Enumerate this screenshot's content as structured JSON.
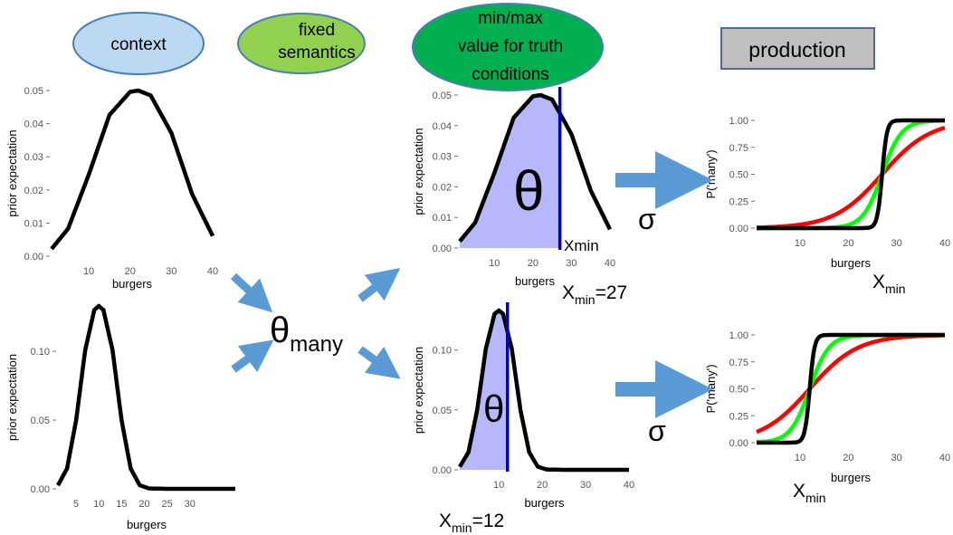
{
  "headers": {
    "context": "context",
    "fixed_semantics": [
      "fixed",
      "semantics"
    ],
    "minmax": [
      "min/max",
      "value for truth",
      "conditions"
    ],
    "production": "production"
  },
  "labels": {
    "theta_many_main": "θ",
    "theta_many_sub": "many",
    "theta_top": "θ",
    "theta_bottom": "θ",
    "sigma_top": "σ",
    "sigma_bottom": "σ",
    "xmin_plain": "Xmin",
    "xmin_top_main": "X",
    "xmin_top_sub": "min",
    "xmin_top_eq": "=27",
    "xmin_bottom_main": "X",
    "xmin_bottom_sub": "min",
    "xmin_bottom_eq": "=12",
    "xmin_right_top_main": "X",
    "xmin_right_top_sub": "min",
    "xmin_right_bottom_main": "X",
    "xmin_right_bottom_sub": "min"
  },
  "colors": {
    "context": "#bcd9f2",
    "context_border": "#4a7eb5",
    "fixed": "#92d050",
    "minmax": "#00b050",
    "production_bg": "#bfbfbf",
    "production_border": "#4a6a9a",
    "arrow": "#5b9bd5",
    "shade": "#aaaaff",
    "vline": "#0000cc",
    "curve": "#000000",
    "green": "#00ff00",
    "red": "#ff0000"
  },
  "chart_data": [
    {
      "type": "line",
      "name": "context prior (top)",
      "xlabel": "burgers",
      "ylabel": "prior expectation",
      "xlim": [
        1,
        40
      ],
      "ylim": [
        0,
        0.05
      ],
      "x_ticks": [
        10,
        20,
        30,
        40
      ],
      "y_ticks": [
        "0.00",
        "0.01",
        "0.02",
        "0.03",
        "0.04",
        "0.05"
      ],
      "series": [
        {
          "x": [
            1,
            5,
            10,
            15,
            20,
            22,
            25,
            30,
            35,
            40
          ],
          "values": [
            0.0022,
            0.0083,
            0.0246,
            0.0426,
            0.0496,
            0.05,
            0.0485,
            0.0372,
            0.0188,
            0.0061
          ]
        }
      ]
    },
    {
      "type": "line",
      "name": "context prior (bottom)",
      "xlabel": "burgers",
      "ylabel": "prior expectation",
      "xlim": [
        1,
        40
      ],
      "ylim": [
        0,
        0.133
      ],
      "x_ticks": [
        5,
        10,
        15,
        20,
        25,
        30
      ],
      "y_ticks": [
        "0.00",
        "0.05",
        "0.10"
      ],
      "series": [
        {
          "x": [
            1,
            3,
            5,
            7,
            9,
            10,
            11,
            13,
            15,
            17,
            19,
            21,
            25,
            40
          ],
          "values": [
            0.0026,
            0.0147,
            0.0498,
            0.101,
            0.1301,
            0.133,
            0.1301,
            0.101,
            0.0498,
            0.0147,
            0.0026,
            0.0003,
            0.0,
            0.0
          ]
        }
      ]
    },
    {
      "type": "area",
      "name": "threshold prior (top)",
      "xlabel": "burgers",
      "ylabel": "prior expectation",
      "xlim": [
        1,
        40
      ],
      "ylim": [
        0,
        0.05
      ],
      "x_ticks": [
        10,
        20,
        30,
        40
      ],
      "y_ticks": [
        "0.00",
        "0.01",
        "0.02",
        "0.03",
        "0.04",
        "0.05"
      ],
      "threshold": 27,
      "series": [
        {
          "x": [
            1,
            5,
            10,
            15,
            20,
            22,
            25,
            30,
            35,
            40
          ],
          "values": [
            0.0022,
            0.0083,
            0.0246,
            0.0426,
            0.0496,
            0.05,
            0.0485,
            0.0372,
            0.0188,
            0.0061
          ]
        }
      ]
    },
    {
      "type": "area",
      "name": "threshold prior (bottom)",
      "xlabel": "burgers",
      "ylabel": "prior expectation",
      "xlim": [
        1,
        40
      ],
      "ylim": [
        0,
        0.133
      ],
      "x_ticks": [
        10,
        20,
        30,
        40
      ],
      "y_ticks": [
        "0.00",
        "0.05",
        "0.10"
      ],
      "threshold": 12,
      "series": [
        {
          "x": [
            1,
            3,
            5,
            7,
            9,
            10,
            11,
            13,
            15,
            17,
            19,
            21,
            25,
            40
          ],
          "values": [
            0.0026,
            0.0147,
            0.0498,
            0.101,
            0.1301,
            0.133,
            0.1301,
            0.101,
            0.0498,
            0.0147,
            0.0026,
            0.0003,
            0.0,
            0.0
          ]
        }
      ]
    },
    {
      "type": "line",
      "name": "production (top)",
      "xlabel": "burgers",
      "ylabel": "P('many')",
      "xlim": [
        1,
        40
      ],
      "ylim": [
        0,
        1
      ],
      "x_ticks": [
        10,
        20,
        30,
        40
      ],
      "y_ticks": [
        "0.00",
        "0.25",
        "0.50",
        "0.75",
        "1.00"
      ],
      "threshold": 27,
      "series": [
        {
          "color": "black",
          "steepness": 2.0
        },
        {
          "color": "green",
          "steepness": 0.5
        },
        {
          "color": "red",
          "steepness": 0.2
        }
      ]
    },
    {
      "type": "line",
      "name": "production (bottom)",
      "xlabel": "burgers",
      "ylabel": "P('many')",
      "xlim": [
        1,
        40
      ],
      "ylim": [
        0,
        1
      ],
      "x_ticks": [
        10,
        20,
        30,
        40
      ],
      "y_ticks": [
        "0.00",
        "0.25",
        "0.50",
        "0.75",
        "1.00"
      ],
      "threshold": 12,
      "series": [
        {
          "color": "black",
          "steepness": 2.0
        },
        {
          "color": "green",
          "steepness": 0.5
        },
        {
          "color": "red",
          "steepness": 0.2
        }
      ]
    }
  ]
}
